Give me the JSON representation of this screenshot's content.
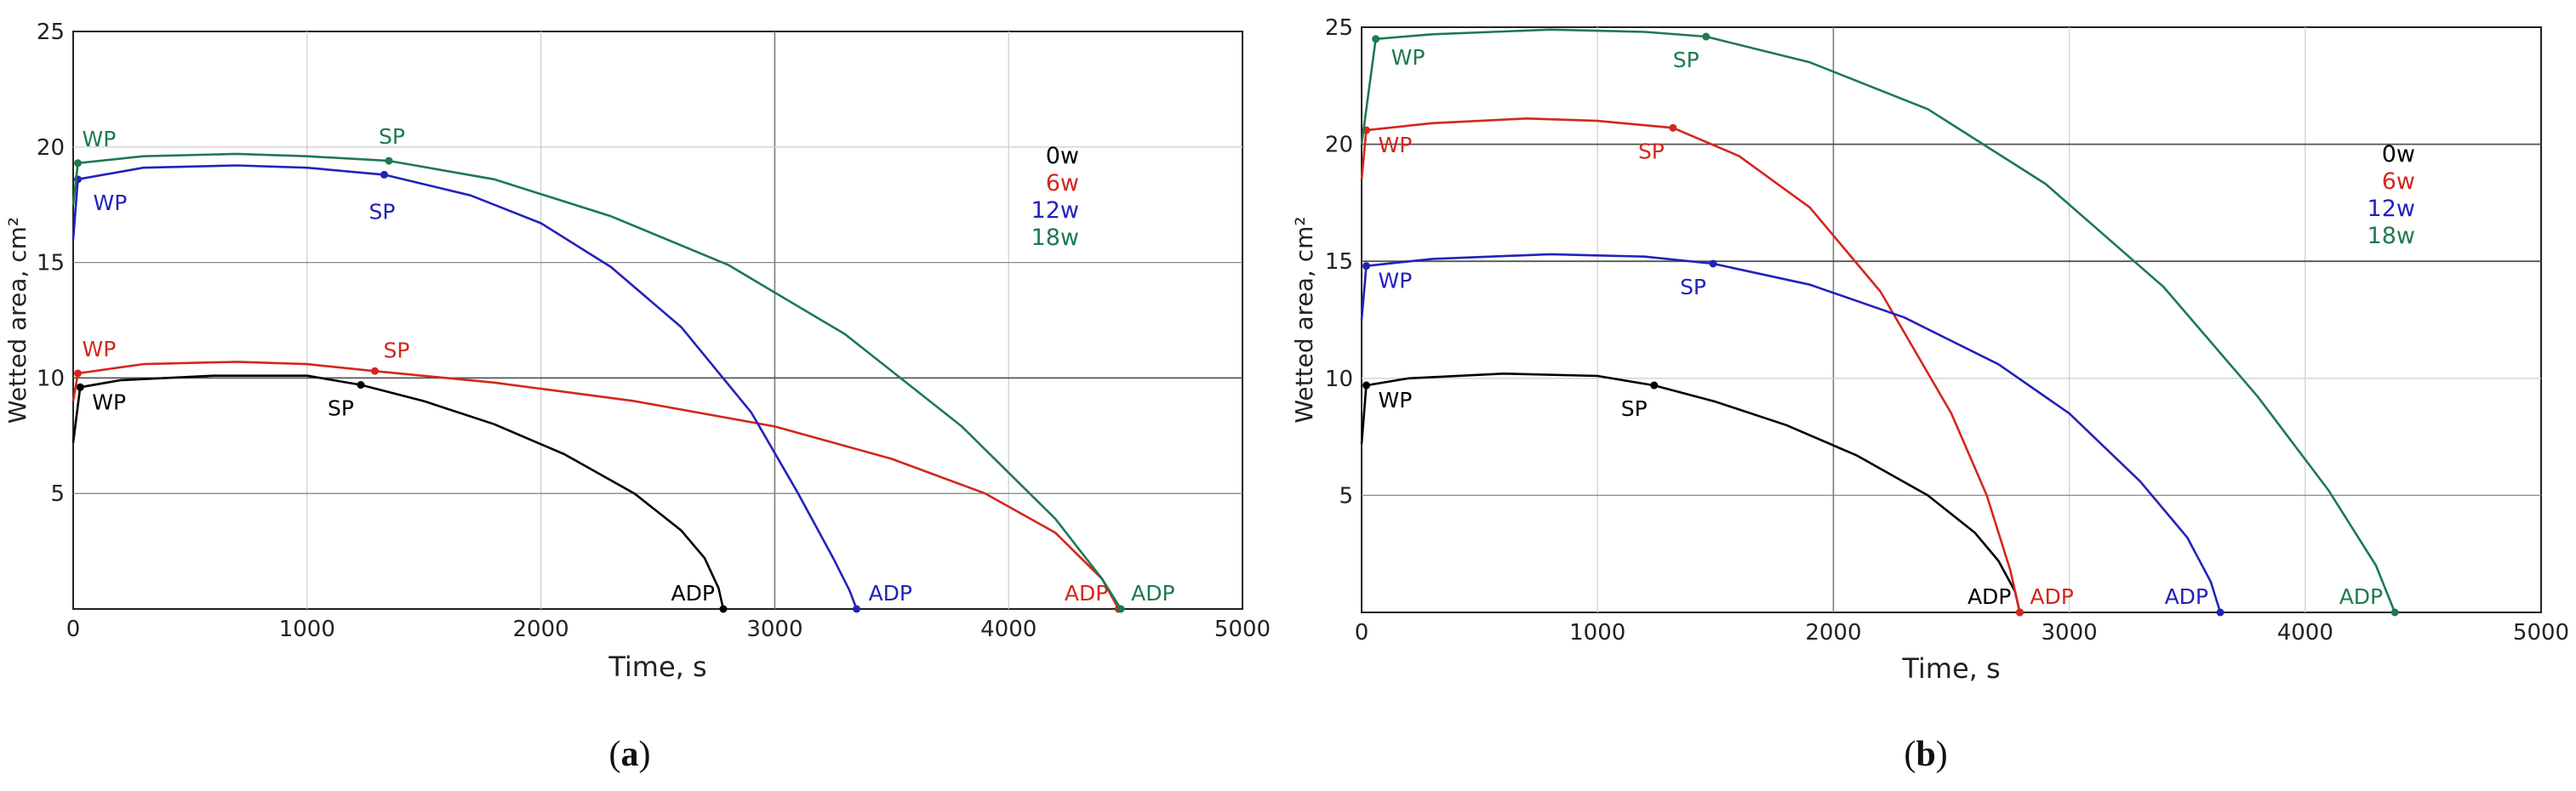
{
  "chart_data": [
    {
      "type": "line",
      "panel_label": "(a)",
      "caption_open": "(",
      "caption_letter": "a",
      "caption_close": ")",
      "xlabel": "Time, s",
      "ylabel": "Wetted area, cm²",
      "xlim": [
        0,
        5000
      ],
      "ylim": [
        0,
        25
      ],
      "xticks": [
        0,
        1000,
        2000,
        3000,
        4000,
        5000
      ],
      "xtick_labels": [
        "0",
        "1000",
        "2000",
        "3000",
        "4000",
        "5000"
      ],
      "yticks": [
        5,
        10,
        15,
        20,
        25
      ],
      "ytick_labels": [
        "5",
        "10",
        "15",
        "20",
        "25"
      ],
      "grid": true,
      "legend": {
        "placement": "right",
        "entries": [
          {
            "label": "0w",
            "color": "#000000"
          },
          {
            "label": "6w",
            "color": "#d4261c"
          },
          {
            "label": "12w",
            "color": "#2222bb"
          },
          {
            "label": "18w",
            "color": "#1e7a4e"
          }
        ]
      },
      "series": [
        {
          "name": "0w",
          "color": "#000000",
          "x": [
            0,
            30,
            200,
            600,
            1000,
            1230,
            1500,
            1800,
            2100,
            2400,
            2600,
            2700,
            2760,
            2780
          ],
          "y": [
            7.2,
            9.6,
            9.9,
            10.1,
            10.1,
            9.7,
            9.0,
            8.0,
            6.7,
            5.0,
            3.4,
            2.2,
            0.9,
            0
          ],
          "points": [
            {
              "name": "WP",
              "x": 30,
              "y": 9.6,
              "label": "WP"
            },
            {
              "name": "SP",
              "x": 1230,
              "y": 9.7,
              "label": "SP"
            },
            {
              "name": "ADP",
              "x": 2780,
              "y": 0,
              "label": "ADP"
            }
          ]
        },
        {
          "name": "6w",
          "color": "#d4261c",
          "x": [
            0,
            20,
            300,
            700,
            1000,
            1290,
            1800,
            2400,
            3000,
            3500,
            3900,
            4200,
            4400,
            4470
          ],
          "y": [
            9.0,
            10.2,
            10.6,
            10.7,
            10.6,
            10.3,
            9.8,
            9.0,
            7.9,
            6.5,
            5.0,
            3.3,
            1.3,
            0
          ],
          "points": [
            {
              "name": "WP",
              "x": 20,
              "y": 10.2,
              "label": "WP"
            },
            {
              "name": "SP",
              "x": 1290,
              "y": 10.3,
              "label": "SP"
            },
            {
              "name": "ADP",
              "x": 4470,
              "y": 0,
              "label": "ADP"
            }
          ]
        },
        {
          "name": "12w",
          "color": "#2222bb",
          "x": [
            0,
            20,
            300,
            700,
            1000,
            1330,
            1700,
            2000,
            2300,
            2600,
            2900,
            3100,
            3250,
            3320,
            3350
          ],
          "y": [
            16.0,
            18.6,
            19.1,
            19.2,
            19.1,
            18.8,
            17.9,
            16.7,
            14.8,
            12.2,
            8.5,
            5.0,
            2.2,
            0.8,
            0
          ],
          "points": [
            {
              "name": "WP",
              "x": 20,
              "y": 18.6,
              "label": "WP"
            },
            {
              "name": "SP",
              "x": 1330,
              "y": 18.8,
              "label": "SP"
            },
            {
              "name": "ADP",
              "x": 3350,
              "y": 0,
              "label": "ADP"
            }
          ]
        },
        {
          "name": "18w",
          "color": "#1e7a4e",
          "x": [
            0,
            20,
            300,
            700,
            1000,
            1350,
            1800,
            2300,
            2800,
            3300,
            3800,
            4200,
            4400,
            4480
          ],
          "y": [
            17.5,
            19.3,
            19.6,
            19.7,
            19.6,
            19.4,
            18.6,
            17.0,
            14.9,
            11.9,
            7.9,
            3.9,
            1.3,
            0
          ],
          "points": [
            {
              "name": "WP",
              "x": 20,
              "y": 19.3,
              "label": "WP"
            },
            {
              "name": "SP",
              "x": 1350,
              "y": 19.4,
              "label": "SP"
            },
            {
              "name": "ADP",
              "x": 4480,
              "y": 0,
              "label": "ADP"
            }
          ]
        }
      ]
    },
    {
      "type": "line",
      "panel_label": "(b)",
      "caption_open": "(",
      "caption_letter": "b",
      "caption_close": ")",
      "xlabel": "Time, s",
      "ylabel": "Wetted area, cm²",
      "xlim": [
        0,
        5000
      ],
      "ylim": [
        0,
        25
      ],
      "xticks": [
        0,
        1000,
        2000,
        3000,
        4000,
        5000
      ],
      "xtick_labels": [
        "0",
        "1000",
        "2000",
        "3000",
        "4000",
        "5000"
      ],
      "yticks": [
        5,
        10,
        15,
        20,
        25
      ],
      "ytick_labels": [
        "5",
        "10",
        "15",
        "20",
        "25"
      ],
      "grid": true,
      "legend": {
        "placement": "right",
        "entries": [
          {
            "label": "0w",
            "color": "#000000"
          },
          {
            "label": "6w",
            "color": "#d4261c"
          },
          {
            "label": "12w",
            "color": "#2222bb"
          },
          {
            "label": "18w",
            "color": "#1e7a4e"
          }
        ]
      },
      "series": [
        {
          "name": "0w",
          "color": "#000000",
          "x": [
            0,
            20,
            200,
            600,
            1000,
            1240,
            1500,
            1800,
            2100,
            2400,
            2600,
            2700,
            2770,
            2790
          ],
          "y": [
            7.2,
            9.7,
            10.0,
            10.2,
            10.1,
            9.7,
            9.0,
            8.0,
            6.7,
            5.0,
            3.4,
            2.2,
            0.9,
            0
          ],
          "points": [
            {
              "name": "WP",
              "x": 20,
              "y": 9.7,
              "label": "WP"
            },
            {
              "name": "SP",
              "x": 1240,
              "y": 9.7,
              "label": "SP"
            },
            {
              "name": "ADP",
              "x": 2790,
              "y": 0,
              "label": "ADP"
            }
          ]
        },
        {
          "name": "6w",
          "color": "#d4261c",
          "x": [
            0,
            20,
            300,
            700,
            1000,
            1320,
            1600,
            1900,
            2200,
            2500,
            2650,
            2750,
            2790
          ],
          "y": [
            18.5,
            20.6,
            20.9,
            21.1,
            21.0,
            20.7,
            19.5,
            17.3,
            13.7,
            8.5,
            5.0,
            1.8,
            0
          ],
          "points": [
            {
              "name": "WP",
              "x": 20,
              "y": 20.6,
              "label": "WP"
            },
            {
              "name": "SP",
              "x": 1320,
              "y": 20.7,
              "label": "SP"
            },
            {
              "name": "ADP",
              "x": 2790,
              "y": 0,
              "label": "ADP"
            }
          ]
        },
        {
          "name": "12w",
          "color": "#2222bb",
          "x": [
            0,
            20,
            300,
            800,
            1200,
            1490,
            1900,
            2300,
            2700,
            3000,
            3300,
            3500,
            3600,
            3640
          ],
          "y": [
            12.5,
            14.8,
            15.1,
            15.3,
            15.2,
            14.9,
            14.0,
            12.6,
            10.6,
            8.5,
            5.6,
            3.2,
            1.3,
            0
          ],
          "points": [
            {
              "name": "WP",
              "x": 20,
              "y": 14.8,
              "label": "WP"
            },
            {
              "name": "SP",
              "x": 1490,
              "y": 14.9,
              "label": "SP"
            },
            {
              "name": "ADP",
              "x": 3640,
              "y": 0,
              "label": "ADP"
            }
          ]
        },
        {
          "name": "18w",
          "color": "#1e7a4e",
          "x": [
            0,
            60,
            300,
            800,
            1200,
            1460,
            1900,
            2400,
            2900,
            3400,
            3800,
            4100,
            4300,
            4380
          ],
          "y": [
            20.0,
            24.5,
            24.7,
            24.9,
            24.8,
            24.6,
            23.5,
            21.5,
            18.3,
            13.9,
            9.2,
            5.2,
            2.0,
            0
          ],
          "points": [
            {
              "name": "WP",
              "x": 60,
              "y": 24.5,
              "label": "WP"
            },
            {
              "name": "SP",
              "x": 1460,
              "y": 24.6,
              "label": "SP"
            },
            {
              "name": "ADP",
              "x": 4380,
              "y": 0,
              "label": "ADP"
            }
          ]
        }
      ]
    }
  ]
}
